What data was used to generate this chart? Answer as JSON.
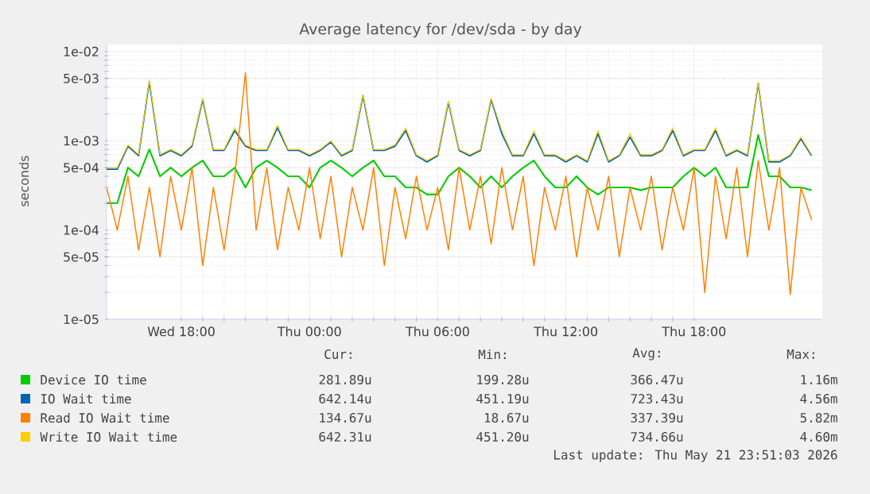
{
  "chart_data": {
    "type": "line",
    "title": "Average latency for /dev/sda - by day",
    "ylabel": "seconds",
    "log": true,
    "grid": true,
    "legend": "bottom",
    "line_style": "solid",
    "x": [
      "2026-05-20T14:30",
      "2026-05-20T15:00",
      "2026-05-20T15:30",
      "2026-05-20T16:00",
      "2026-05-20T16:30",
      "2026-05-20T17:00",
      "2026-05-20T17:30",
      "2026-05-20T18:00",
      "2026-05-20T18:30",
      "2026-05-20T19:00",
      "2026-05-20T19:30",
      "2026-05-20T20:00",
      "2026-05-20T20:30",
      "2026-05-20T21:00",
      "2026-05-20T21:30",
      "2026-05-20T22:00",
      "2026-05-20T22:30",
      "2026-05-20T23:00",
      "2026-05-20T23:30",
      "2026-05-21T00:00",
      "2026-05-21T00:30",
      "2026-05-21T01:00",
      "2026-05-21T01:30",
      "2026-05-21T02:00",
      "2026-05-21T02:30",
      "2026-05-21T03:00",
      "2026-05-21T03:30",
      "2026-05-21T04:00",
      "2026-05-21T04:30",
      "2026-05-21T05:00",
      "2026-05-21T05:30",
      "2026-05-21T06:00",
      "2026-05-21T06:30",
      "2026-05-21T07:00",
      "2026-05-21T07:30",
      "2026-05-21T08:00",
      "2026-05-21T08:30",
      "2026-05-21T09:00",
      "2026-05-21T09:30",
      "2026-05-21T10:00",
      "2026-05-21T10:30",
      "2026-05-21T11:00",
      "2026-05-21T11:30",
      "2026-05-21T12:00",
      "2026-05-21T12:30",
      "2026-05-21T13:00",
      "2026-05-21T13:30",
      "2026-05-21T14:00",
      "2026-05-21T14:30",
      "2026-05-21T15:00",
      "2026-05-21T15:30",
      "2026-05-21T16:00",
      "2026-05-21T16:30",
      "2026-05-21T17:00",
      "2026-05-21T17:30",
      "2026-05-21T18:00",
      "2026-05-21T18:30",
      "2026-05-21T19:00",
      "2026-05-21T19:30",
      "2026-05-21T20:00",
      "2026-05-21T20:30",
      "2026-05-21T21:00",
      "2026-05-21T21:30",
      "2026-05-21T22:00",
      "2026-05-21T22:30",
      "2026-05-21T23:00",
      "2026-05-21T23:30"
    ],
    "xlim": [
      "2026-05-20T14:30",
      "2026-05-22T00:00"
    ],
    "xticks": [
      {
        "value": "2026-05-20T18:00",
        "label": "Wed 18:00"
      },
      {
        "value": "2026-05-21T00:00",
        "label": "Thu 00:00"
      },
      {
        "value": "2026-05-21T06:00",
        "label": "Thu 06:00"
      },
      {
        "value": "2026-05-21T12:00",
        "label": "Thu 12:00"
      },
      {
        "value": "2026-05-21T18:00",
        "label": "Thu 18:00"
      }
    ],
    "ylim": [
      1e-05,
      0.012
    ],
    "yticks": [
      {
        "value": 1e-05,
        "label": "1e-05"
      },
      {
        "value": 5e-05,
        "label": "5e-05"
      },
      {
        "value": 0.0001,
        "label": "1e-04"
      },
      {
        "value": 0.0005,
        "label": "5e-04"
      },
      {
        "value": 0.001,
        "label": "1e-03"
      },
      {
        "value": 0.005,
        "label": "5e-03"
      },
      {
        "value": 0.01,
        "label": "1e-02"
      }
    ],
    "series": [
      {
        "name": "Device IO time",
        "color": "#00cc00",
        "values": [
          0.0002,
          0.0002,
          0.0005,
          0.0004,
          0.0008,
          0.0004,
          0.0005,
          0.0004,
          0.0005,
          0.0006,
          0.0004,
          0.0004,
          0.0005,
          0.0003,
          0.0005,
          0.0006,
          0.0005,
          0.0004,
          0.0004,
          0.0003,
          0.0005,
          0.0006,
          0.0005,
          0.0004,
          0.0005,
          0.0006,
          0.0004,
          0.0004,
          0.0003,
          0.0003,
          0.00025,
          0.00025,
          0.0004,
          0.0005,
          0.0004,
          0.0003,
          0.0004,
          0.0003,
          0.0004,
          0.0005,
          0.0006,
          0.0004,
          0.0003,
          0.0003,
          0.0004,
          0.0003,
          0.00025,
          0.0003,
          0.0003,
          0.0003,
          0.00028,
          0.0003,
          0.0003,
          0.0003,
          0.0004,
          0.0005,
          0.0004,
          0.0005,
          0.0003,
          0.0003,
          0.0003,
          0.00116,
          0.0004,
          0.0004,
          0.0003,
          0.0003,
          0.00028
        ]
      },
      {
        "name": "IO Wait time",
        "color": "#0066b3",
        "values": [
          0.00048,
          0.00048,
          0.00087,
          0.00068,
          0.0046,
          0.00068,
          0.00078,
          0.00068,
          0.00087,
          0.0029,
          0.00078,
          0.00078,
          0.0013,
          0.00087,
          0.00078,
          0.00078,
          0.0014,
          0.00078,
          0.00078,
          0.00068,
          0.00078,
          0.00097,
          0.00068,
          0.00078,
          0.0032,
          0.00078,
          0.00078,
          0.00087,
          0.0013,
          0.00068,
          0.00058,
          0.00068,
          0.0027,
          0.00078,
          0.00068,
          0.00078,
          0.0029,
          0.0012,
          0.00068,
          0.00068,
          0.0012,
          0.00068,
          0.00068,
          0.00058,
          0.00068,
          0.00058,
          0.0012,
          0.00058,
          0.00068,
          0.0011,
          0.00068,
          0.00068,
          0.00078,
          0.0013,
          0.00068,
          0.00078,
          0.00078,
          0.0013,
          0.00068,
          0.00078,
          0.00068,
          0.0044,
          0.00058,
          0.00058,
          0.00068,
          0.00105,
          0.00068
        ]
      },
      {
        "name": "Read IO Wait time",
        "color": "#ff8000",
        "values": [
          0.0003,
          0.0001,
          0.0004,
          6e-05,
          0.0003,
          5e-05,
          0.0004,
          0.0001,
          0.0005,
          4e-05,
          0.0003,
          6e-05,
          0.0004,
          0.0058,
          0.0001,
          0.0005,
          6e-05,
          0.0003,
          0.0001,
          0.0005,
          8e-05,
          0.0004,
          5e-05,
          0.0003,
          0.0001,
          0.0005,
          4e-05,
          0.0003,
          8e-05,
          0.0004,
          0.0001,
          0.0003,
          6e-05,
          0.0005,
          0.0001,
          0.0004,
          7e-05,
          0.0005,
          0.0001,
          0.0004,
          4e-05,
          0.0003,
          0.0001,
          0.0004,
          5e-05,
          0.0003,
          0.0001,
          0.0004,
          5e-05,
          0.0003,
          0.0001,
          0.0004,
          6e-05,
          0.0003,
          0.0001,
          0.0005,
          2e-05,
          0.0004,
          8e-05,
          0.0005,
          5e-05,
          0.0006,
          0.0001,
          0.0005,
          1.9e-05,
          0.0003,
          0.00013
        ]
      },
      {
        "name": "Write IO Wait time",
        "color": "#ffcc00",
        "values": [
          0.0005,
          0.0005,
          0.0009,
          0.0007,
          0.0048,
          0.0007,
          0.0008,
          0.0007,
          0.0009,
          0.003,
          0.0008,
          0.0008,
          0.0014,
          0.0009,
          0.0008,
          0.0008,
          0.0015,
          0.0008,
          0.0008,
          0.0007,
          0.0008,
          0.001,
          0.0007,
          0.0008,
          0.0033,
          0.0008,
          0.0008,
          0.0009,
          0.0014,
          0.0007,
          0.0006,
          0.0007,
          0.0028,
          0.0008,
          0.0007,
          0.0008,
          0.003,
          0.0013,
          0.0007,
          0.0007,
          0.0013,
          0.0007,
          0.0007,
          0.0006,
          0.0007,
          0.0006,
          0.0013,
          0.0006,
          0.0007,
          0.0012,
          0.0007,
          0.0007,
          0.0008,
          0.0014,
          0.0007,
          0.0008,
          0.0008,
          0.0014,
          0.0007,
          0.0008,
          0.0007,
          0.0045,
          0.0006,
          0.0006,
          0.0007,
          0.0011,
          0.0007
        ]
      }
    ],
    "annotations": [
      "Cur:",
      "Min:",
      "Avg:",
      "Max:",
      "281.89u",
      "199.28u",
      "366.47u",
      "1.16m",
      "642.14u",
      "451.19u",
      "723.43u",
      "4.56m",
      "134.67u",
      "18.67u",
      "337.39u",
      "5.82m",
      "642.31u",
      "451.20u",
      "734.66u",
      "4.60m",
      "Last update: Thu May 21 23:51:03 2026"
    ]
  }
}
